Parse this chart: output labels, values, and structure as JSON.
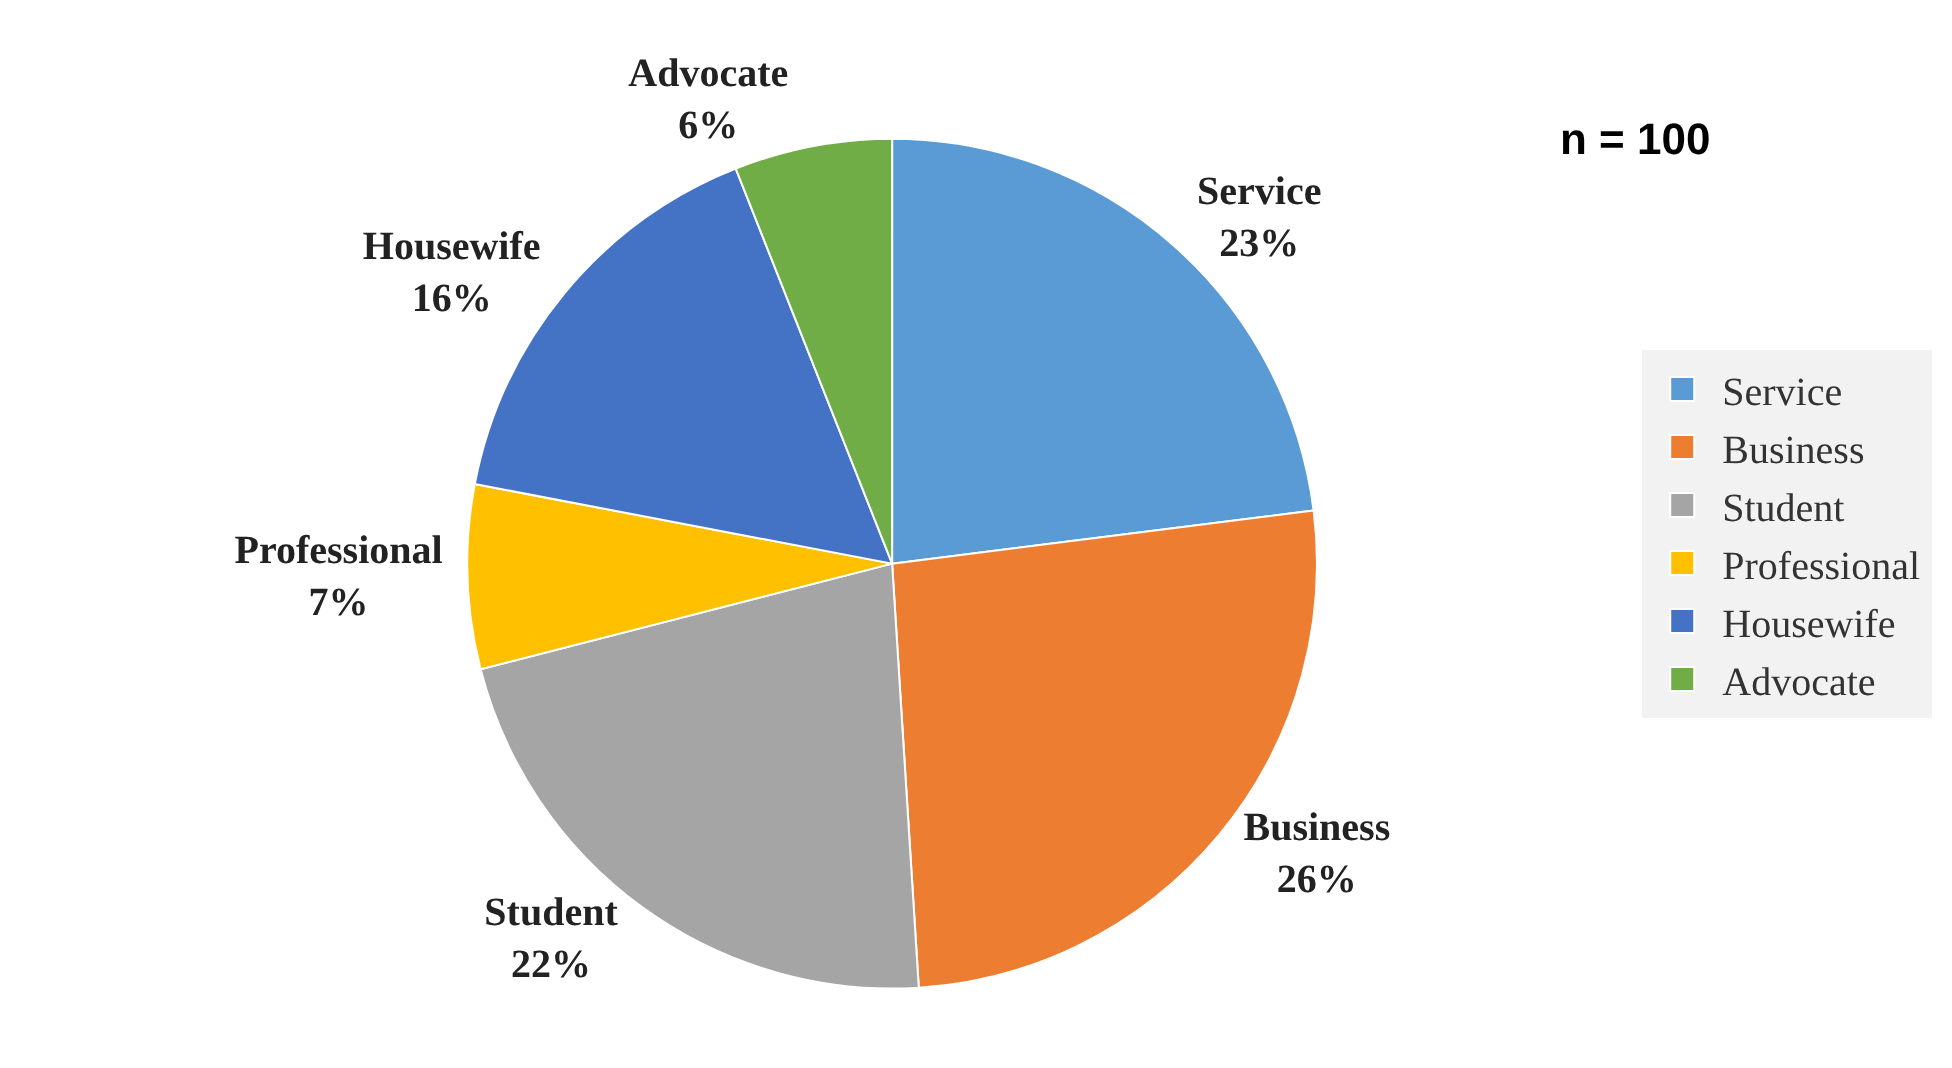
{
  "chart_data": {
    "type": "pie",
    "categories": [
      "Service",
      "Business",
      "Student",
      "Professional",
      "Housewife",
      "Advocate"
    ],
    "values": [
      23,
      26,
      22,
      7,
      16,
      6
    ],
    "value_labels": [
      "23%",
      "26%",
      "22%",
      "7%",
      "16%",
      "6%"
    ],
    "colors": [
      "#5b9bd5",
      "#ed7d31",
      "#a5a5a5",
      "#ffc000",
      "#4472c4",
      "#70ad47"
    ],
    "annotations": [
      "n = 100"
    ],
    "legend": "right"
  }
}
